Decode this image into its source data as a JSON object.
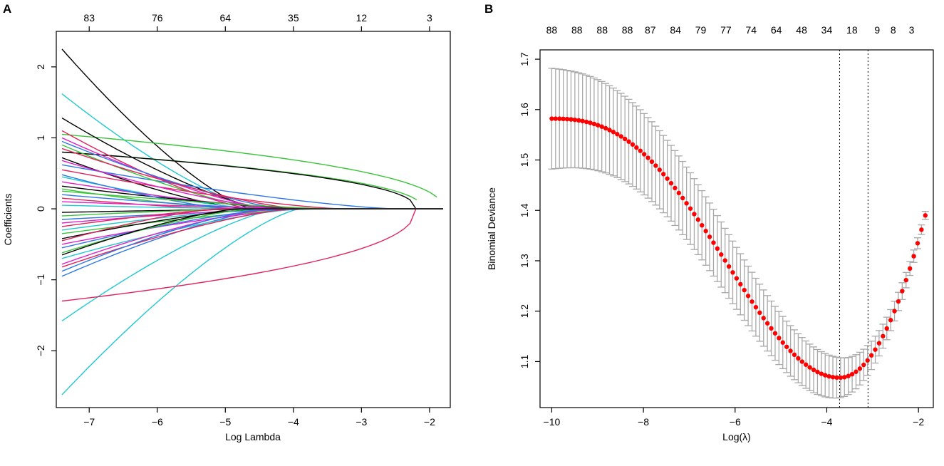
{
  "chart_data": [
    {
      "panel": "A",
      "type": "line",
      "xlabel": "Log Lambda",
      "ylabel": "Coefficients",
      "xlim": [
        -7.4,
        -1.8
      ],
      "ylim": [
        -2.7,
        2.4
      ],
      "x_ticks": [
        -7,
        -6,
        -5,
        -4,
        -3,
        -2
      ],
      "y_ticks": [
        -2,
        -1,
        0,
        1,
        2
      ],
      "top_axis": {
        "positions": [
          -7,
          -6,
          -5,
          -4,
          -3,
          -2
        ],
        "labels": [
          "83",
          "76",
          "64",
          "35",
          "12",
          "3"
        ]
      },
      "x_start": -7.4,
      "x_end": -1.8,
      "colors": [
        "#000000",
        "#e0245e",
        "#3ac43a",
        "#2e78e6",
        "#1fc8d0",
        "#e020c8"
      ],
      "series": [
        {
          "c0": 2.25,
          "zero_at": -4.6,
          "color": 0
        },
        {
          "c0": -2.62,
          "zero_at": -3.9,
          "color": 4
        },
        {
          "c0": 1.62,
          "zero_at": -4.5,
          "color": 4
        },
        {
          "c0": -1.58,
          "zero_at": -4.2,
          "color": 4
        },
        {
          "c0": -1.3,
          "zero_at": -2.2,
          "color": 1,
          "trend": "late"
        },
        {
          "c0": 1.05,
          "zero_at": -1.8,
          "color": 2,
          "trend": "late"
        },
        {
          "c0": 0.8,
          "zero_at": -2.1,
          "color": 2,
          "trend": "late"
        },
        {
          "c0": 0.8,
          "zero_at": -2.2,
          "color": 0,
          "trend": "late"
        },
        {
          "c0": 1.28,
          "zero_at": -4.4,
          "color": 0
        },
        {
          "c0": -0.95,
          "zero_at": -4.3,
          "color": 3
        },
        {
          "c0": 1.1,
          "zero_at": -4.6,
          "color": 1
        },
        {
          "c0": 0.62,
          "zero_at": -2.5,
          "color": 3
        },
        {
          "c0": 1.0,
          "zero_at": -4.3,
          "color": 5
        },
        {
          "c0": 0.95,
          "zero_at": -4.1,
          "color": 3
        },
        {
          "c0": 0.9,
          "zero_at": -4.4,
          "color": 2
        },
        {
          "c0": 0.72,
          "zero_at": -4.7,
          "color": 0
        },
        {
          "c0": 0.55,
          "zero_at": -3.3,
          "color": 1
        },
        {
          "c0": 0.45,
          "zero_at": -4.5,
          "color": 4
        },
        {
          "c0": 0.38,
          "zero_at": -4.0,
          "color": 5
        },
        {
          "c0": 0.32,
          "zero_at": -3.8,
          "color": 0
        },
        {
          "c0": 0.28,
          "zero_at": -4.8,
          "color": 2
        },
        {
          "c0": 0.2,
          "zero_at": -4.2,
          "color": 3
        },
        {
          "c0": 0.15,
          "zero_at": -5.0,
          "color": 1
        },
        {
          "c0": 0.1,
          "zero_at": -3.6,
          "color": 5
        },
        {
          "c0": 0.05,
          "zero_at": -4.4,
          "color": 4
        },
        {
          "c0": -0.05,
          "zero_at": -3.9,
          "color": 0
        },
        {
          "c0": -0.1,
          "zero_at": -4.6,
          "color": 2
        },
        {
          "c0": -0.15,
          "zero_at": -3.5,
          "color": 3
        },
        {
          "c0": -0.2,
          "zero_at": -4.1,
          "color": 5
        },
        {
          "c0": -0.25,
          "zero_at": -4.9,
          "color": 1
        },
        {
          "c0": -0.3,
          "zero_at": -4.3,
          "color": 4
        },
        {
          "c0": -0.35,
          "zero_at": -3.7,
          "color": 2
        },
        {
          "c0": -0.42,
          "zero_at": -4.5,
          "color": 0
        },
        {
          "c0": -0.5,
          "zero_at": -3.8,
          "color": 5
        },
        {
          "c0": -0.55,
          "zero_at": -4.2,
          "color": 3
        },
        {
          "c0": -0.62,
          "zero_at": -4.6,
          "color": 2
        },
        {
          "c0": -0.7,
          "zero_at": -3.9,
          "color": 4
        },
        {
          "c0": -0.78,
          "zero_at": -4.3,
          "color": 5
        },
        {
          "c0": -0.82,
          "zero_at": -4.0,
          "color": 1
        },
        {
          "c0": -0.88,
          "zero_at": -4.4,
          "color": 3
        },
        {
          "c0": 0.85,
          "zero_at": -3.9,
          "color": 1
        },
        {
          "c0": 0.68,
          "zero_at": -4.2,
          "color": 5
        },
        {
          "c0": 0.48,
          "zero_at": -4.9,
          "color": 3
        },
        {
          "c0": -0.45,
          "zero_at": -5.1,
          "color": 1
        },
        {
          "c0": 0.25,
          "zero_at": -3.4,
          "color": 2
        },
        {
          "c0": -0.65,
          "zero_at": -4.8,
          "color": 0
        }
      ]
    },
    {
      "panel": "B",
      "type": "scatter",
      "xlabel": "Log(λ)",
      "ylabel": "Binomial Deviance",
      "xlim": [
        -10.1,
        -1.8
      ],
      "ylim": [
        1.02,
        1.71
      ],
      "x_ticks": [
        -10,
        -8,
        -6,
        -4,
        -2
      ],
      "y_ticks": [
        1.1,
        1.2,
        1.3,
        1.4,
        1.5,
        1.6,
        1.7
      ],
      "top_axis": {
        "positions": [
          -10,
          -9.45,
          -8.9,
          -8.35,
          -7.85,
          -7.3,
          -6.75,
          -6.2,
          -5.65,
          -5.1,
          -4.55,
          -4.0,
          -3.45,
          -2.9,
          -2.55,
          -2.15
        ],
        "labels": [
          "88",
          "88",
          "88",
          "88",
          "87",
          "84",
          "79",
          "77",
          "74",
          "64",
          "48",
          "34",
          "18",
          "9",
          "8",
          "3"
        ]
      },
      "x_start": -10.0,
      "x_end": -1.85,
      "n_points": 98,
      "lambda_min": -3.72,
      "lambda_1se": -3.1,
      "deviance_start": 1.582,
      "deviance_min": 1.068,
      "deviance_end": 1.39,
      "se_start": 0.1,
      "se_min": 0.04,
      "se_end": 0.008
    }
  ]
}
